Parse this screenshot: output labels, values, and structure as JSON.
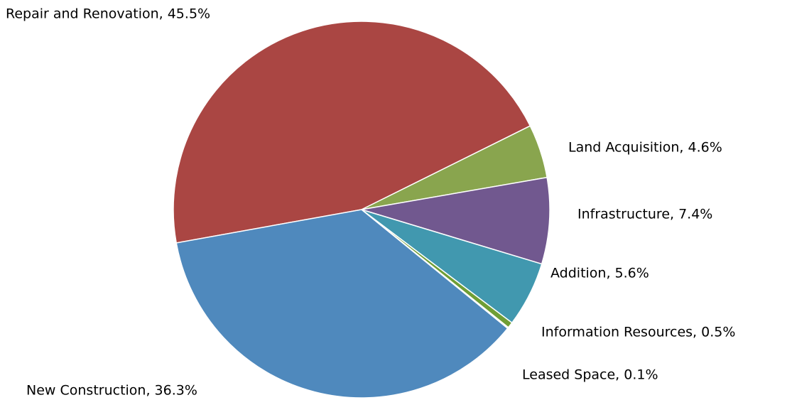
{
  "chart_data": {
    "type": "pie",
    "values": [
      45.5,
      4.6,
      7.4,
      5.6,
      0.5,
      0.1,
      36.3
    ],
    "value_labels": [
      "Repair and Renovation, 45.5%",
      "Land Acquisition, 4.6%",
      "Infrastructure, 7.4%",
      "Addition, 5.6%",
      "Information Resources, 0.5%",
      "Leased Space, 0.1%",
      "New Construction, 36.3%"
    ],
    "colors": [
      "#aa4643",
      "#89a54e",
      "#71588f",
      "#4198af",
      "#6f9e35",
      "#b8cc8f",
      "#4f89bd"
    ]
  }
}
